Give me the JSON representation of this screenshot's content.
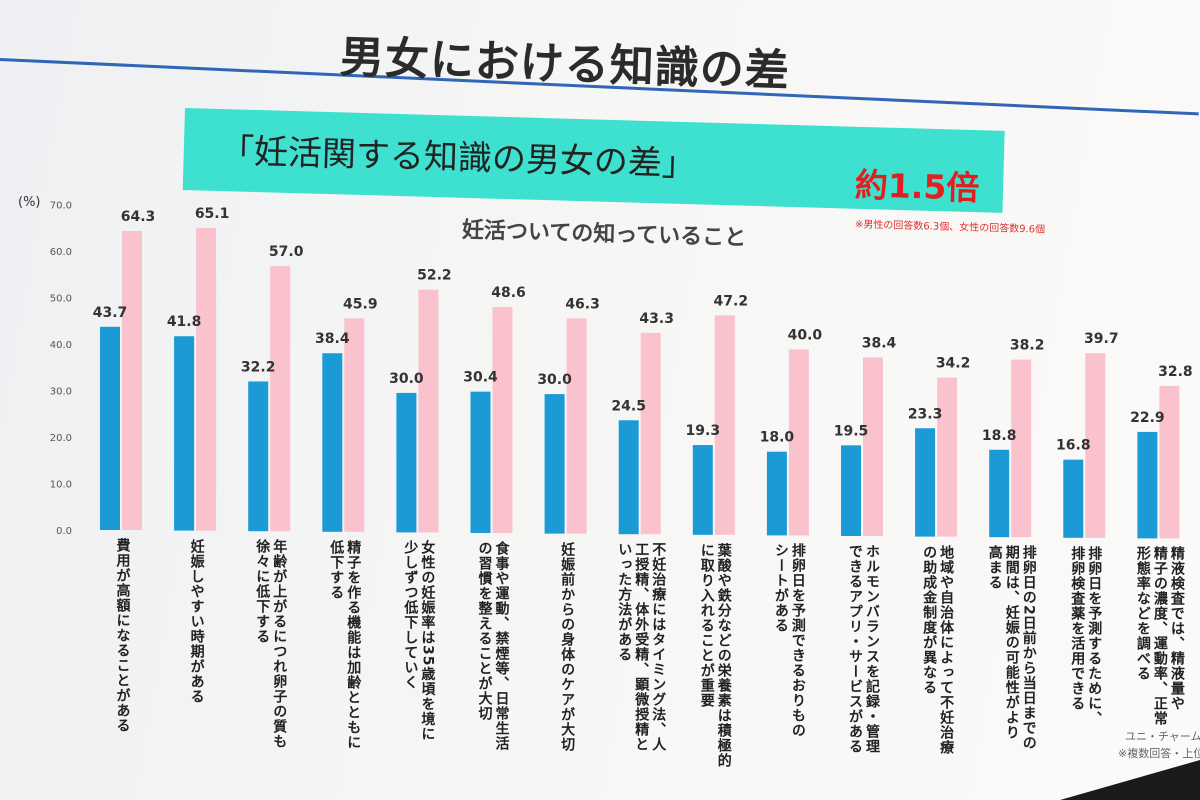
{
  "header": {
    "title": "男女における知識の差",
    "banner": "「妊活関する知識の男女の差」",
    "badge": "約1.5倍",
    "footnote": "※男性の回答数6.3個、女性の回答数9.6個",
    "subtitle": "妊活ついての知っていること"
  },
  "source": {
    "line1": "ユニ・チャーム",
    "line2": "※複数回答・上位"
  },
  "colors": {
    "male": "#1c9ad6",
    "female": "#f9c2cc",
    "banner": "#3ee0cf",
    "accent": "#e02020",
    "rule": "#2f66b8"
  },
  "chart_data": {
    "type": "bar",
    "ylabel": "(%)",
    "ylim": [
      0,
      70
    ],
    "yticks": [
      "0.0",
      "10.0",
      "20.0",
      "30.0",
      "40.0",
      "50.0",
      "60.0",
      "70.0"
    ],
    "grid": false,
    "legend": "none",
    "categories": [
      "費用が高額になることがある",
      "妊娠しやすい時期がある",
      "年齢が上がるにつれ卵子の質も徐々に低下する",
      "精子を作る機能は加齢とともに低下する",
      "女性の妊娠率は35歳頃を境に少しずつ低下していく",
      "食事や運動、禁煙等、日常生活の習慣を整えることが大切",
      "妊娠前からの身体のケアが大切",
      "不妊治療にはタイミング法、人工授精、体外受精、顕微授精といった方法がある",
      "葉酸や鉄分などの栄養素は積極的に取り入れることが重要",
      "排卵日を予測できるおりものシートがある",
      "ホルモンバランスを記録・管理できるアプリ・サービスがある",
      "地域や自治体によって不妊治療の助成金制度が異なる",
      "排卵日の2日前から当日までの期間は、妊娠の可能性がより高まる",
      "排卵日を予測するために、排卵検査薬を活用できる",
      "精液検査では、精液量や精子の濃度、運動率、正常形態率などを調べる"
    ],
    "category_lines": [
      [
        "費用が高額になることがある"
      ],
      [
        "妊娠しやすい時期がある"
      ],
      [
        "年齢が上がるにつれ卵子の質も",
        "徐々に低下する"
      ],
      [
        "精子を作る機能は加齢とともに",
        "低下する"
      ],
      [
        "女性の妊娠率は35歳頃を境に",
        "少しずつ低下していく"
      ],
      [
        "食事や運動、禁煙等、日常生活",
        "の習慣を整えることが大切"
      ],
      [
        "妊娠前からの身体のケアが大切"
      ],
      [
        "不妊治療にはタイミング法、人",
        "工授精、体外受精、顕微授精と",
        "いった方法がある"
      ],
      [
        "葉酸や鉄分などの栄養素は積極的",
        "に取り入れることが重要"
      ],
      [
        "排卵日を予測できるおりもの",
        "シートがある"
      ],
      [
        "ホルモンバランスを記録・管理",
        "できるアプリ・サービスがある"
      ],
      [
        "地域や自治体によって不妊治療",
        "の助成金制度が異なる"
      ],
      [
        "排卵日の2日前から当日までの",
        "期間は、妊娠の可能性がより",
        "高まる"
      ],
      [
        "排卵日を予測するために、",
        "排卵検査薬を活用できる"
      ],
      [
        "精液検査では、精液量や",
        "精子の濃度、運動率、正常",
        "形態率などを調べる"
      ]
    ],
    "series": [
      {
        "values": [
          43.7,
          41.8,
          32.2,
          38.4,
          30.0,
          30.4,
          30.0,
          24.5,
          19.3,
          18.0,
          19.5,
          23.3,
          18.8,
          16.8,
          22.9
        ]
      },
      {
        "values": [
          64.3,
          65.1,
          57.0,
          45.9,
          52.2,
          48.6,
          46.3,
          43.3,
          47.2,
          40.0,
          38.4,
          34.2,
          38.2,
          39.7,
          32.8
        ]
      }
    ]
  }
}
